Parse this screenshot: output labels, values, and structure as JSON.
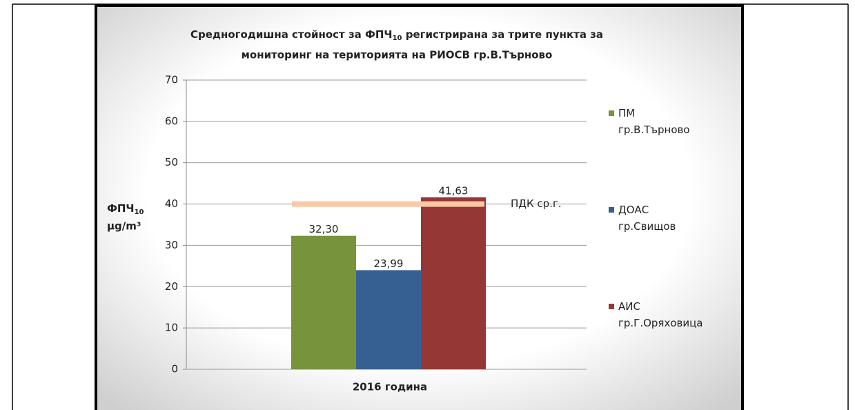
{
  "chart_data": {
    "type": "bar",
    "title": [
      "Средногодишна стойност за ФПЧ",
      "10",
      " регистрирана за трите пункта за",
      "мониторинг на територията на РИОСВ гр.В.Търново"
    ],
    "y_label": [
      "ФПЧ",
      "10",
      "µg/m³"
    ],
    "categories": [
      "2016 година"
    ],
    "series": [
      {
        "name": "ПМ гр.В.Търново",
        "color": "#77933c",
        "values": [
          32.3
        ],
        "value_labels": [
          "32,30"
        ]
      },
      {
        "name": "ДОАС гр.Свищов",
        "color": "#376092",
        "values": [
          23.99
        ],
        "value_labels": [
          "23,99"
        ]
      },
      {
        "name": "АИС гр.Г.Оряховица",
        "color": "#953735",
        "values": [
          41.63
        ],
        "value_labels": [
          "41,63"
        ]
      }
    ],
    "reference_line": {
      "value": 40,
      "label": "ПДК ср.г.",
      "color": "#f9c8a6"
    },
    "ylim": [
      0,
      70
    ],
    "yticks": [
      0,
      10,
      20,
      30,
      40,
      50,
      60,
      70
    ],
    "grid": true,
    "legend": "right"
  }
}
